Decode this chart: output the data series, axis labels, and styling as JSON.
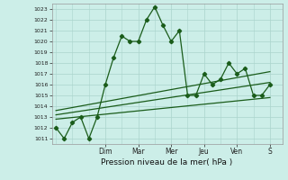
{
  "xlabel": "Pression niveau de la mer( hPa )",
  "ylim": [
    1010.5,
    1023.5
  ],
  "yticks": [
    1011,
    1012,
    1013,
    1014,
    1015,
    1016,
    1017,
    1018,
    1019,
    1020,
    1021,
    1022,
    1023
  ],
  "day_labels": [
    "Dim",
    "Mar",
    "Mer",
    "Jeu",
    "Ven",
    "S"
  ],
  "day_positions": [
    6,
    10,
    14,
    18,
    22,
    26
  ],
  "xlim": [
    -0.5,
    27.5
  ],
  "background_color": "#cceee8",
  "grid_color": "#aad4cc",
  "line_color": "#1a5c1a",
  "series1_x": [
    0,
    1,
    2,
    3,
    4,
    5,
    6,
    7,
    8,
    9,
    10,
    11,
    12,
    13,
    14,
    15,
    16,
    17,
    18,
    19,
    20,
    21,
    22,
    23,
    24,
    25,
    26
  ],
  "series1_y": [
    1012.0,
    1011.0,
    1012.5,
    1013.0,
    1011.0,
    1013.0,
    1016.0,
    1018.5,
    1020.5,
    1020.0,
    1020.0,
    1022.0,
    1023.2,
    1021.5,
    1020.0,
    1021.0,
    1015.0,
    1015.0,
    1017.0,
    1016.0,
    1016.5,
    1018.0,
    1017.0,
    1017.5,
    1015.0,
    1015.0,
    1016.0
  ],
  "trend1_x": [
    0,
    26
  ],
  "trend1_y": [
    1012.8,
    1014.8
  ],
  "trend2_x": [
    0,
    26
  ],
  "trend2_y": [
    1013.2,
    1016.2
  ],
  "trend3_x": [
    0,
    26
  ],
  "trend3_y": [
    1013.6,
    1017.2
  ],
  "ytick_fontsize": 4.5,
  "xtick_fontsize": 5.5,
  "xlabel_fontsize": 6.5
}
